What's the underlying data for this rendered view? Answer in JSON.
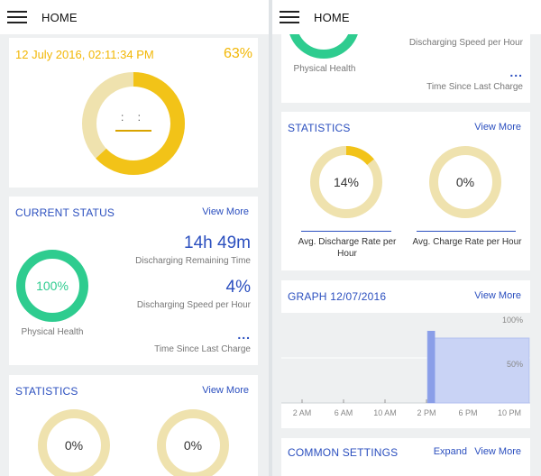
{
  "header": {
    "title": "HOME"
  },
  "left": {
    "battery": {
      "datetime": "12 July 2016, 02:11:34 PM",
      "percent_text": "63%",
      "level": 0.63,
      "face": ": :"
    },
    "current_status": {
      "title": "CURRENT STATUS",
      "view_more": "View More",
      "health_value": "100%",
      "health_label": "Physical Health",
      "remaining_value": "14h 49m",
      "remaining_label": "Discharging Remaining Time",
      "speed_value": "4%",
      "speed_label": "Discharging Speed per Hour",
      "since_value": "...",
      "since_label": "Time Since Last Charge"
    },
    "statistics": {
      "title": "STATISTICS",
      "view_more": "View More",
      "discharge_value": "0%",
      "charge_value": "0%"
    }
  },
  "right": {
    "top_partial": {
      "health_label": "Physical Health",
      "speed_label": "Discharging Speed per Hour",
      "since_value": "...",
      "since_label": "Time Since Last Charge"
    },
    "statistics": {
      "title": "STATISTICS",
      "view_more": "View More",
      "discharge_value": "14%",
      "discharge_level": 0.14,
      "discharge_label": "Avg. Discharge Rate per Hour",
      "charge_value": "0%",
      "charge_label": "Avg. Charge Rate per Hour"
    },
    "graph": {
      "title": "GRAPH 12/07/2016",
      "view_more": "View More",
      "y_top": "100%",
      "y_mid": "50%",
      "x_labels": [
        "2 AM",
        "6 AM",
        "10 AM",
        "2 PM",
        "6 PM",
        "10 PM"
      ]
    },
    "settings": {
      "title": "COMMON SETTINGS",
      "expand": "Expand",
      "view_more": "View More"
    }
  },
  "colors": {
    "accent": "#2b4fbf",
    "battery": "#f2c318",
    "track": "#efe2ae",
    "health": "#2ecc8f",
    "graph_fill": "#c9d3f5",
    "graph_bar": "#8a9ee8"
  },
  "chart_data": {
    "type": "area",
    "title": "GRAPH 12/07/2016",
    "categories": [
      "2 AM",
      "6 AM",
      "10 AM",
      "2 PM",
      "6 PM",
      "10 PM"
    ],
    "series": [
      {
        "points": [
          [
            14.1,
            80
          ],
          [
            14.3,
            72
          ],
          [
            23.9,
            72
          ]
        ]
      }
    ],
    "x_range": [
      0,
      24
    ],
    "ylim": [
      0,
      100
    ],
    "grid": true
  }
}
